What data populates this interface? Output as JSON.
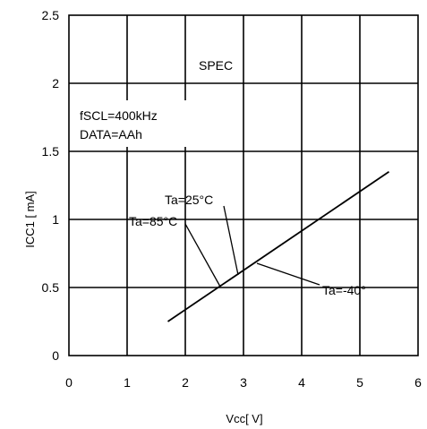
{
  "chart_data": {
    "type": "line",
    "xlabel": "Vcc[ V]",
    "ylabel": "ICC1 [ mA]",
    "xlim": [
      0,
      6
    ],
    "ylim": [
      0,
      2.5
    ],
    "x_ticks": [
      "0",
      "1",
      "2",
      "3",
      "4",
      "5",
      "6"
    ],
    "y_ticks": [
      "0",
      "0.5",
      "1",
      "1.5",
      "2",
      "2.5"
    ],
    "grid": true,
    "series": [
      {
        "values": [
          [
            1.7,
            0.25
          ],
          [
            5.5,
            1.35
          ]
        ],
        "color": "#000000"
      }
    ],
    "annotations": {
      "spec": "SPEC",
      "condition_line1": "fSCL=400kHz",
      "condition_line2": "DATA=AAh",
      "temp_25": "Ta=25°C",
      "temp_85": "Ta=85°C",
      "temp_m40": "Ta=-40°"
    }
  }
}
